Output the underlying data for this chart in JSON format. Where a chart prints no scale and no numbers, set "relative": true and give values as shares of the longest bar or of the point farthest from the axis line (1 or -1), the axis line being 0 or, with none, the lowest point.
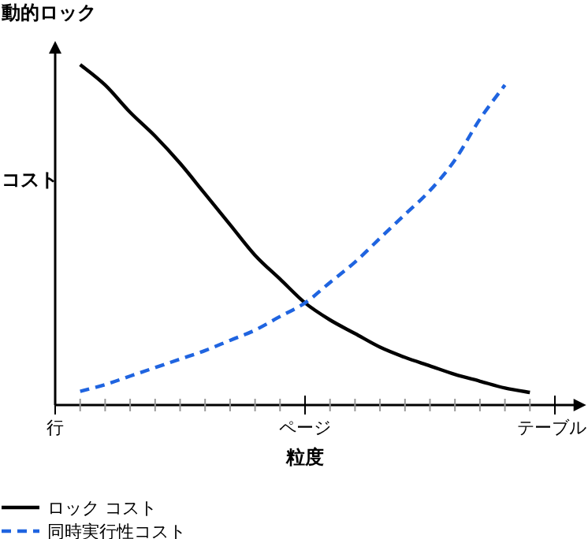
{
  "chart_data": {
    "type": "line",
    "title": "動的ロック",
    "ylabel": "コスト",
    "xlabel": "粒度",
    "relative": true,
    "categories": [
      "行",
      null,
      null,
      null,
      null,
      null,
      null,
      null,
      null,
      null,
      "ページ",
      null,
      null,
      null,
      null,
      null,
      null,
      null,
      null,
      null,
      "テーブル"
    ],
    "legend": "bottom left",
    "series": [
      {
        "name": "ロック コスト",
        "color": "#000000",
        "line_style": "solid",
        "values": [
          null,
          1,
          0.94,
          0.86,
          0.79,
          0.71,
          0.62,
          0.53,
          0.44,
          0.37,
          0.3,
          0.25,
          0.21,
          0.17,
          0.14,
          0.115,
          0.09,
          0.07,
          0.05,
          0.037,
          null
        ]
      },
      {
        "name": "同時実行性コスト",
        "color": "#1f64e0",
        "line_style": "dashed",
        "values": [
          null,
          0.04,
          0.06,
          0.085,
          0.11,
          0.135,
          0.16,
          0.19,
          0.22,
          0.26,
          0.3,
          0.36,
          0.42,
          0.49,
          0.56,
          0.63,
          0.72,
          0.84,
          0.94,
          null,
          null
        ]
      }
    ]
  }
}
